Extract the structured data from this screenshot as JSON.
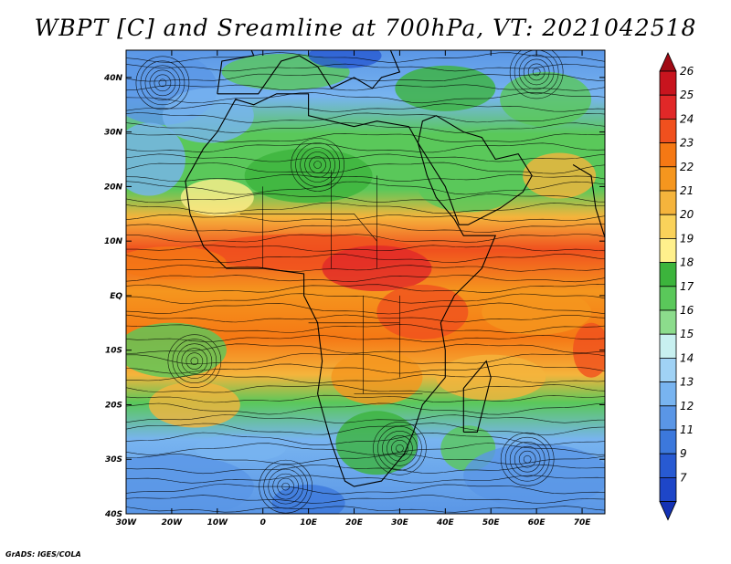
{
  "title": "WBPT [C] and Sreamline at 700hPa, VT: 2021042518",
  "credit": "GrADS: IGES/COLA",
  "map": {
    "lon_ticks": [
      "30W",
      "20W",
      "10W",
      "0",
      "10E",
      "20E",
      "30E",
      "40E",
      "50E",
      "60E",
      "70E"
    ],
    "lat_ticks": [
      "40N",
      "30N",
      "20N",
      "10N",
      "EQ",
      "10S",
      "20S",
      "30S",
      "40S"
    ],
    "lon_range": [
      -30,
      75
    ],
    "lat_range": [
      -40,
      45
    ]
  },
  "colorbar": {
    "levels": [
      "26",
      "25",
      "24",
      "23",
      "22",
      "21",
      "20",
      "19",
      "18",
      "17",
      "16",
      "15",
      "14",
      "13",
      "12",
      "11",
      "9",
      "7"
    ],
    "colors": [
      "#c8141e",
      "#e12828",
      "#f0501e",
      "#f57814",
      "#f5961e",
      "#f5b43c",
      "#fad25a",
      "#fff08c",
      "#3cb43c",
      "#5ac85a",
      "#8cdc8c",
      "#c8f0f0",
      "#a0d2f5",
      "#78b4f0",
      "#5a96e6",
      "#3c78dc",
      "#285ad2",
      "#1e46c8"
    ],
    "top_color": "#a00a14",
    "bottom_color": "#1432b4"
  },
  "bands": [
    {
      "lat": 40,
      "kind": "cold"
    },
    {
      "lat": 30,
      "kind": "mixed"
    },
    {
      "lat": 15,
      "kind": "warm"
    },
    {
      "lat": 5,
      "kind": "hot"
    },
    {
      "lat": -10,
      "kind": "warm"
    },
    {
      "lat": -25,
      "kind": "mixed"
    },
    {
      "lat": -35,
      "kind": "cold"
    }
  ]
}
